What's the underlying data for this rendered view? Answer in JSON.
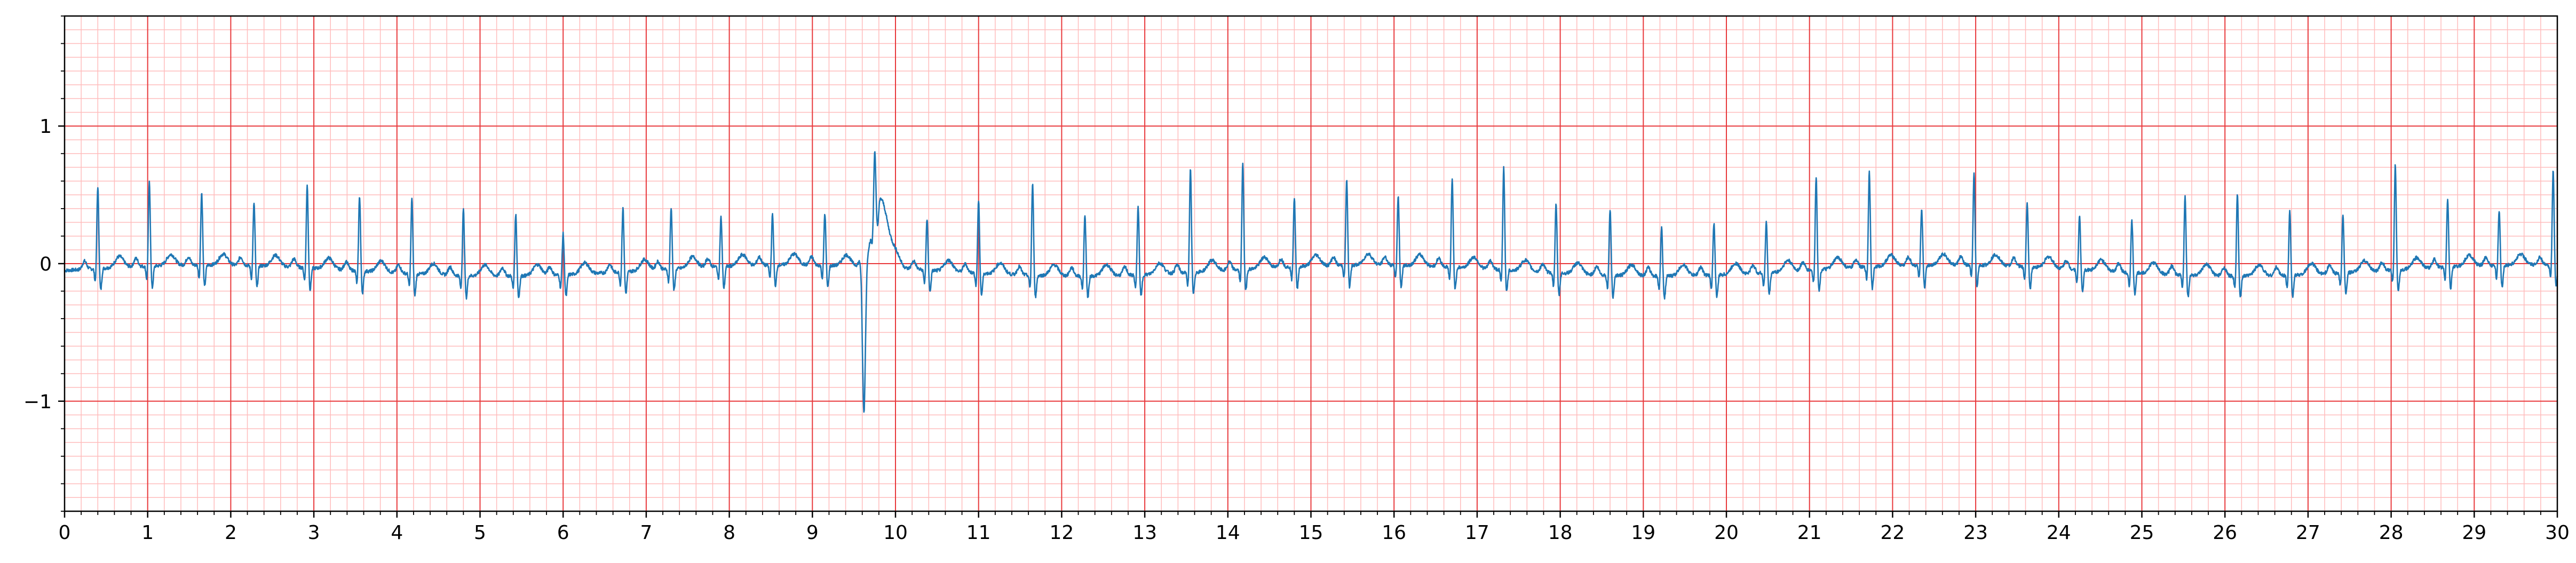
{
  "chart_data": {
    "type": "line",
    "title": "",
    "xlabel": "",
    "ylabel": "",
    "xlim": [
      0,
      30
    ],
    "ylim": [
      -1.8,
      1.8
    ],
    "xticks": [
      0,
      1,
      2,
      3,
      4,
      5,
      6,
      7,
      8,
      9,
      10,
      11,
      12,
      13,
      14,
      15,
      16,
      17,
      18,
      19,
      20,
      21,
      22,
      23,
      24,
      25,
      26,
      27,
      28,
      29,
      30
    ],
    "xtick_labels": [
      "0",
      "1",
      "2",
      "3",
      "4",
      "5",
      "6",
      "7",
      "8",
      "9",
      "10",
      "11",
      "12",
      "13",
      "14",
      "15",
      "16",
      "17",
      "18",
      "19",
      "20",
      "21",
      "22",
      "23",
      "24",
      "25",
      "26",
      "27",
      "28",
      "29",
      "30"
    ],
    "yticks": [
      -1,
      0,
      1
    ],
    "ytick_labels": [
      "−1",
      "0",
      "1"
    ],
    "grid": {
      "major": true,
      "minor": true,
      "major_color": "#e8393c",
      "minor_color": "#ffbcbc",
      "x_minor_step": 0.2,
      "y_minor_step": 0.1
    },
    "line_color": "#1f77b4",
    "legend": "none",
    "beats": [
      {
        "t": 0.4,
        "r": 0.6
      },
      {
        "t": 1.02,
        "r": 0.61
      },
      {
        "t": 1.65,
        "r": 0.53
      },
      {
        "t": 2.28,
        "r": 0.46
      },
      {
        "t": 2.92,
        "r": 0.6
      },
      {
        "t": 3.55,
        "r": 0.55
      },
      {
        "t": 4.18,
        "r": 0.55
      },
      {
        "t": 4.8,
        "r": 0.48
      },
      {
        "t": 5.43,
        "r": 0.45
      },
      {
        "t": 6.0,
        "r": 0.3
      },
      {
        "t": 6.72,
        "r": 0.47
      },
      {
        "t": 7.3,
        "r": 0.45
      },
      {
        "t": 7.9,
        "r": 0.36
      },
      {
        "t": 8.52,
        "r": 0.37
      },
      {
        "t": 9.15,
        "r": 0.38
      },
      {
        "t": 9.75,
        "r": 0.48
      },
      {
        "t": 10.38,
        "r": 0.37
      },
      {
        "t": 11.0,
        "r": 0.53
      },
      {
        "t": 11.65,
        "r": 0.67
      },
      {
        "t": 12.28,
        "r": 0.45
      },
      {
        "t": 12.92,
        "r": 0.5
      },
      {
        "t": 13.55,
        "r": 0.75
      },
      {
        "t": 14.18,
        "r": 0.78
      },
      {
        "t": 14.8,
        "r": 0.5
      },
      {
        "t": 15.43,
        "r": 0.62
      },
      {
        "t": 16.05,
        "r": 0.51
      },
      {
        "t": 16.7,
        "r": 0.64
      },
      {
        "t": 17.32,
        "r": 0.75
      },
      {
        "t": 17.95,
        "r": 0.5
      },
      {
        "t": 18.6,
        "r": 0.48
      },
      {
        "t": 19.22,
        "r": 0.35
      },
      {
        "t": 19.85,
        "r": 0.38
      },
      {
        "t": 20.48,
        "r": 0.37
      },
      {
        "t": 21.08,
        "r": 0.68
      },
      {
        "t": 21.72,
        "r": 0.7
      },
      {
        "t": 22.35,
        "r": 0.4
      },
      {
        "t": 22.98,
        "r": 0.67
      },
      {
        "t": 23.62,
        "r": 0.47
      },
      {
        "t": 24.25,
        "r": 0.4
      },
      {
        "t": 24.88,
        "r": 0.38
      },
      {
        "t": 25.52,
        "r": 0.58
      },
      {
        "t": 26.15,
        "r": 0.6
      },
      {
        "t": 26.78,
        "r": 0.48
      },
      {
        "t": 27.42,
        "r": 0.42
      },
      {
        "t": 28.05,
        "r": 0.77
      },
      {
        "t": 28.68,
        "r": 0.5
      },
      {
        "t": 29.3,
        "r": 0.4
      },
      {
        "t": 29.95,
        "r": 0.7
      }
    ],
    "pvc": {
      "t": 9.62,
      "min": -1.13,
      "recovery_peak": 0.5
    }
  }
}
